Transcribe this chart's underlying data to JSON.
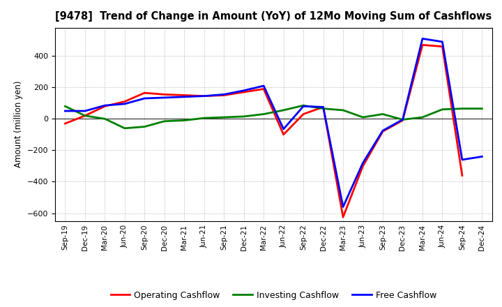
{
  "title": "[9478]  Trend of Change in Amount (YoY) of 12Mo Moving Sum of Cashflows",
  "ylabel": "Amount (million yen)",
  "xlabels": [
    "Sep-19",
    "Dec-19",
    "Mar-20",
    "Jun-20",
    "Sep-20",
    "Dec-20",
    "Mar-21",
    "Jun-21",
    "Sep-21",
    "Dec-21",
    "Mar-22",
    "Jun-22",
    "Sep-22",
    "Dec-22",
    "Mar-23",
    "Jun-23",
    "Sep-23",
    "Dec-23",
    "Mar-24",
    "Jun-24",
    "Sep-24",
    "Dec-24"
  ],
  "operating": [
    -30,
    20,
    80,
    110,
    165,
    155,
    150,
    145,
    150,
    170,
    190,
    -100,
    30,
    75,
    -625,
    -300,
    -80,
    -10,
    470,
    460,
    -360,
    null
  ],
  "investing": [
    80,
    20,
    0,
    -60,
    -50,
    -15,
    -10,
    5,
    10,
    15,
    30,
    55,
    85,
    65,
    55,
    10,
    30,
    -5,
    10,
    60,
    65,
    65
  ],
  "free": [
    50,
    50,
    85,
    95,
    130,
    135,
    140,
    145,
    155,
    180,
    210,
    -65,
    80,
    75,
    -560,
    -280,
    -75,
    -5,
    510,
    490,
    -260,
    -240
  ],
  "ylim": [
    -650,
    580
  ],
  "yticks": [
    -600,
    -400,
    -200,
    0,
    200,
    400
  ],
  "colors": {
    "operating": "#FF0000",
    "investing": "#008000",
    "free": "#0000FF"
  },
  "legend": [
    "Operating Cashflow",
    "Investing Cashflow",
    "Free Cashflow"
  ],
  "background": "#FFFFFF",
  "plot_bg": "#FFFFFF",
  "grid_color": "#999999",
  "line_width": 2.0
}
